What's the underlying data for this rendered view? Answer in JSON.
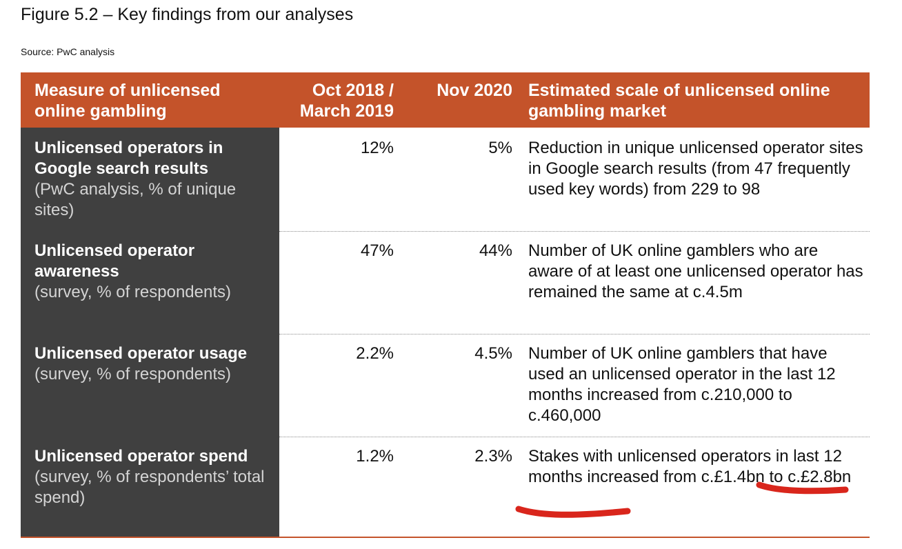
{
  "figure": {
    "title": "Figure 5.2 – Key findings from our analyses",
    "source": "Source: PwC analysis"
  },
  "colors": {
    "header_bg": "#c4532a",
    "left_column_bg": "#404040",
    "annotation": "#d9261c"
  },
  "table": {
    "headers": {
      "measure": "Measure of unlicensed online gambling",
      "period1": "Oct 2018 / March 2019",
      "period2": "Nov 2020",
      "scale": "Estimated scale of unlicensed online gambling market"
    },
    "rows": [
      {
        "measure_title": "Unlicensed operators in Google search results",
        "measure_sub": "(PwC analysis, % of unique sites)",
        "period1": "12%",
        "period2": "5%",
        "description": "Reduction in unique unlicensed operator sites in Google search results (from 47 frequently used key words) from 229 to 98"
      },
      {
        "measure_title": "Unlicensed operator awareness",
        "measure_sub": "(survey, % of respondents)",
        "period1": "47%",
        "period2": "44%",
        "description": "Number of UK online gamblers who are aware of at least one unlicensed operator has remained the same at c.4.5m"
      },
      {
        "measure_title": "Unlicensed operator usage",
        "measure_sub": "(survey, % of respondents)",
        "period1": "2.2%",
        "period2": "4.5%",
        "description": "Number of UK online gamblers that have used an unlicensed operator in the last 12 months increased from c.210,000 to c.460,000"
      },
      {
        "measure_title": "Unlicensed operator spend",
        "measure_sub": "(survey, % of respondents’ total spend)",
        "period1": "1.2%",
        "period2": "2.3%",
        "description": "Stakes with unlicensed operators in last 12 months increased from c.£1.4bn to c.£2.8bn"
      }
    ]
  }
}
